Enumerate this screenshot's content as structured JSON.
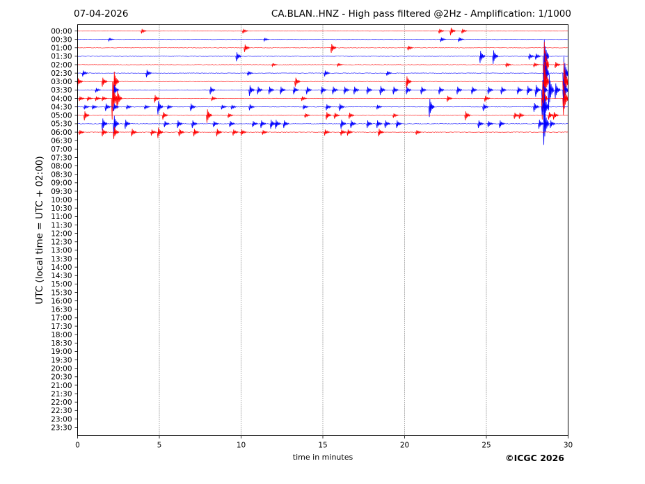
{
  "header": {
    "date": "07-04-2026",
    "title": "CA.BLAN..HNZ - High pass filtered @2Hz - Amplification: 1/1000"
  },
  "footer": {
    "copyright": "©ICGC 2026"
  },
  "chart_data": {
    "type": "line",
    "title": "CA.BLAN..HNZ - High pass filtered @2Hz - Amplification: 1/1000",
    "xlabel": "time in minutes",
    "ylabel": "UTC (local time = UTC + 02:00)",
    "xlim": [
      0,
      30
    ],
    "x_ticks": [
      0,
      5,
      10,
      15,
      20,
      25,
      30
    ],
    "x_gridlines": [
      5,
      10,
      15,
      20,
      25
    ],
    "grid": "vertical dotted",
    "y_tick_labels": [
      "00:00",
      "00:30",
      "01:00",
      "01:30",
      "02:00",
      "02:30",
      "03:00",
      "03:30",
      "04:00",
      "04:30",
      "05:00",
      "05:30",
      "06:00",
      "06:30",
      "07:00",
      "07:30",
      "08:00",
      "08:30",
      "09:00",
      "09:30",
      "10:00",
      "10:30",
      "11:00",
      "11:30",
      "12:00",
      "12:30",
      "13:00",
      "13:30",
      "14:00",
      "14:30",
      "15:00",
      "15:30",
      "16:00",
      "16:30",
      "17:00",
      "17:30",
      "18:00",
      "18:30",
      "19:00",
      "19:30",
      "20:00",
      "20:30",
      "21:00",
      "21:30",
      "22:00",
      "22:30",
      "23:00",
      "23:30"
    ],
    "colors": {
      "trace_a": "#ff0000",
      "trace_b": "#0000ff",
      "grid": "#000000"
    },
    "traces": [
      {
        "label": "00:00",
        "color": "#ff0000",
        "events": [
          [
            4.0,
            0.3
          ],
          [
            10.2,
            0.3
          ],
          [
            22.2,
            0.3
          ],
          [
            22.9,
            0.5
          ],
          [
            23.6,
            0.3
          ]
        ]
      },
      {
        "label": "00:30",
        "color": "#0000ff",
        "events": [
          [
            2.0,
            0.2
          ],
          [
            11.5,
            0.2
          ],
          [
            22.3,
            0.3
          ],
          [
            23.4,
            0.3
          ]
        ]
      },
      {
        "label": "01:00",
        "color": "#ff0000",
        "events": [
          [
            10.3,
            0.5
          ],
          [
            15.6,
            0.6
          ],
          [
            20.3,
            0.3
          ]
        ]
      },
      {
        "label": "01:30",
        "color": "#0000ff",
        "events": [
          [
            9.8,
            0.6
          ],
          [
            24.7,
            0.8
          ],
          [
            25.5,
            0.9
          ],
          [
            27.7,
            0.4
          ],
          [
            28.1,
            0.4
          ],
          [
            28.6,
            2.5
          ]
        ]
      },
      {
        "label": "02:00",
        "color": "#ff0000",
        "events": [
          [
            12.0,
            0.2
          ],
          [
            16.0,
            0.2
          ],
          [
            26.3,
            0.3
          ],
          [
            28.0,
            0.3
          ],
          [
            28.6,
            3.5
          ],
          [
            29.3,
            0.4
          ]
        ]
      },
      {
        "label": "02:30",
        "color": "#0000ff",
        "events": [
          [
            0.4,
            0.4
          ],
          [
            4.3,
            0.5
          ],
          [
            10.5,
            0.3
          ],
          [
            15.2,
            0.4
          ],
          [
            19.0,
            0.3
          ],
          [
            28.6,
            3.0
          ],
          [
            29.8,
            2.5
          ]
        ]
      },
      {
        "label": "03:00",
        "color": "#ff0000",
        "events": [
          [
            0.1,
            0.5
          ],
          [
            1.6,
            0.6
          ],
          [
            2.3,
            1.5
          ],
          [
            13.4,
            0.6
          ],
          [
            20.2,
            0.8
          ],
          [
            28.6,
            3.0
          ],
          [
            29.8,
            3.0
          ]
        ]
      },
      {
        "label": "03:30",
        "color": "#0000ff",
        "events": [
          [
            1.2,
            0.3
          ],
          [
            2.3,
            0.8
          ],
          [
            8.2,
            0.5
          ],
          [
            10.6,
            0.7
          ],
          [
            11.1,
            0.5
          ],
          [
            11.8,
            0.5
          ],
          [
            12.5,
            0.5
          ],
          [
            13.3,
            0.5
          ],
          [
            14.1,
            0.5
          ],
          [
            15.0,
            0.5
          ],
          [
            15.7,
            0.5
          ],
          [
            16.4,
            0.5
          ],
          [
            17.0,
            0.5
          ],
          [
            17.8,
            0.5
          ],
          [
            18.6,
            0.6
          ],
          [
            19.4,
            0.5
          ],
          [
            20.2,
            0.5
          ],
          [
            21.1,
            0.5
          ],
          [
            22.2,
            0.5
          ],
          [
            23.3,
            0.5
          ],
          [
            24.2,
            0.5
          ],
          [
            25.2,
            0.5
          ],
          [
            26.0,
            0.5
          ],
          [
            27.0,
            0.5
          ],
          [
            27.6,
            0.6
          ],
          [
            28.1,
            0.8
          ],
          [
            28.5,
            1.5
          ],
          [
            28.9,
            2.4
          ],
          [
            29.3,
            1.0
          ],
          [
            29.8,
            1.6
          ]
        ]
      },
      {
        "label": "04:00",
        "color": "#ff0000",
        "events": [
          [
            0.2,
            0.3
          ],
          [
            0.7,
            0.3
          ],
          [
            1.2,
            0.3
          ],
          [
            1.6,
            0.3
          ],
          [
            2.2,
            2.5
          ],
          [
            2.5,
            1.2
          ],
          [
            4.8,
            0.5
          ],
          [
            8.3,
            0.3
          ],
          [
            13.8,
            0.3
          ],
          [
            22.7,
            0.4
          ],
          [
            25.0,
            0.4
          ],
          [
            28.5,
            2.5
          ],
          [
            29.8,
            2.0
          ]
        ]
      },
      {
        "label": "04:30",
        "color": "#0000ff",
        "events": [
          [
            0.5,
            0.3
          ],
          [
            1.0,
            0.3
          ],
          [
            1.8,
            0.5
          ],
          [
            2.3,
            0.5
          ],
          [
            3.1,
            0.3
          ],
          [
            4.2,
            0.3
          ],
          [
            5.0,
            0.9
          ],
          [
            5.6,
            0.3
          ],
          [
            7.0,
            0.5
          ],
          [
            8.9,
            0.3
          ],
          [
            9.5,
            0.3
          ],
          [
            10.6,
            0.4
          ],
          [
            13.9,
            0.3
          ],
          [
            15.3,
            0.4
          ],
          [
            16.1,
            0.5
          ],
          [
            18.4,
            0.3
          ],
          [
            21.6,
            1.2
          ],
          [
            24.9,
            0.5
          ],
          [
            28.0,
            0.6
          ],
          [
            28.5,
            1.0
          ],
          [
            28.6,
            2.0
          ]
        ]
      },
      {
        "label": "05:00",
        "color": "#ff0000",
        "events": [
          [
            0.5,
            0.6
          ],
          [
            5.3,
            0.5
          ],
          [
            8.0,
            0.9
          ],
          [
            9.3,
            0.3
          ],
          [
            14.0,
            0.3
          ],
          [
            15.3,
            0.5
          ],
          [
            15.8,
            0.4
          ],
          [
            16.7,
            0.4
          ],
          [
            19.4,
            0.3
          ],
          [
            23.8,
            0.6
          ],
          [
            26.8,
            0.4
          ],
          [
            27.1,
            0.4
          ],
          [
            28.9,
            0.5
          ],
          [
            29.2,
            0.5
          ]
        ]
      },
      {
        "label": "05:30",
        "color": "#0000ff",
        "events": [
          [
            1.6,
            0.8
          ],
          [
            2.3,
            1.2
          ],
          [
            3.0,
            0.6
          ],
          [
            5.4,
            0.4
          ],
          [
            6.2,
            0.5
          ],
          [
            7.1,
            0.5
          ],
          [
            8.4,
            0.4
          ],
          [
            9.4,
            0.4
          ],
          [
            10.8,
            0.4
          ],
          [
            11.3,
            0.5
          ],
          [
            11.9,
            0.6
          ],
          [
            12.2,
            0.6
          ],
          [
            12.7,
            0.5
          ],
          [
            16.2,
            0.6
          ],
          [
            16.8,
            0.5
          ],
          [
            17.8,
            0.5
          ],
          [
            18.4,
            0.5
          ],
          [
            18.9,
            0.5
          ],
          [
            19.6,
            0.5
          ],
          [
            24.6,
            0.5
          ],
          [
            25.2,
            0.4
          ],
          [
            25.9,
            0.5
          ],
          [
            28.3,
            0.6
          ],
          [
            28.6,
            2.5
          ],
          [
            29.0,
            0.5
          ]
        ]
      },
      {
        "label": "06:00",
        "color": "#ff0000",
        "events": [
          [
            0.2,
            0.3
          ],
          [
            1.6,
            0.5
          ],
          [
            2.3,
            0.8
          ],
          [
            3.4,
            0.5
          ],
          [
            4.6,
            0.4
          ],
          [
            5.0,
            0.7
          ],
          [
            6.3,
            0.5
          ],
          [
            7.2,
            0.5
          ],
          [
            8.6,
            0.5
          ],
          [
            9.6,
            0.4
          ],
          [
            10.1,
            0.4
          ],
          [
            11.4,
            0.3
          ],
          [
            15.2,
            0.4
          ],
          [
            16.2,
            0.4
          ],
          [
            16.6,
            0.4
          ],
          [
            18.5,
            0.5
          ],
          [
            20.8,
            0.3
          ]
        ]
      }
    ]
  }
}
